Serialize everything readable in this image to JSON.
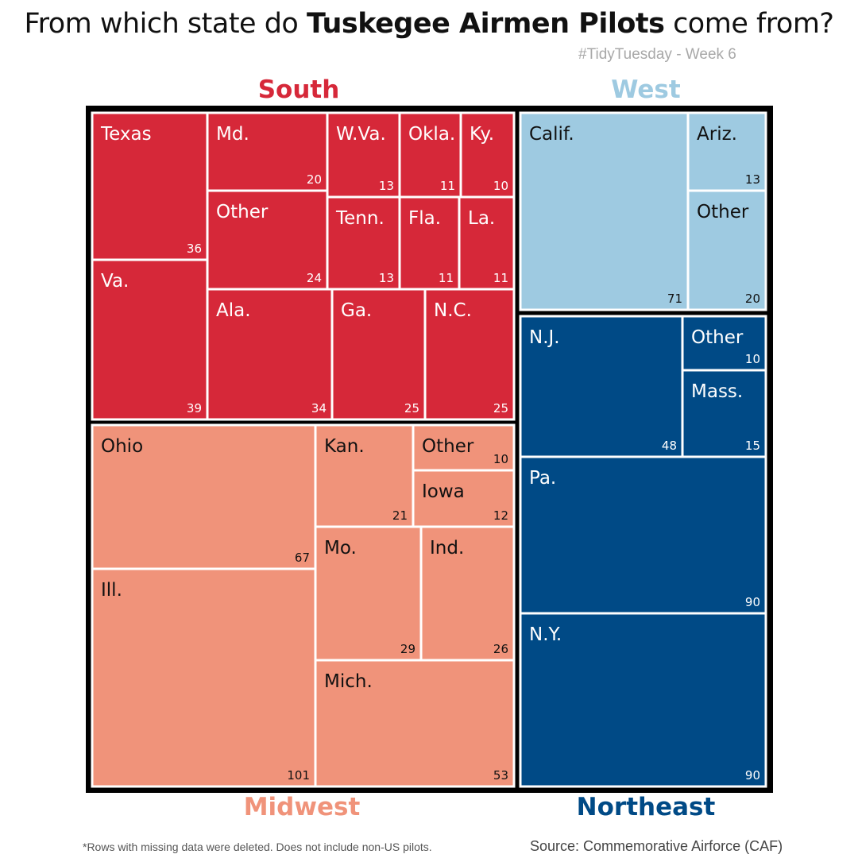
{
  "title": {
    "prefix": "From which state do ",
    "bold": "Tuskegee Airmen Pilots",
    "suffix": " come from?"
  },
  "subtitle": "#TidyTuesday - Week 6",
  "footnote": "*Rows with missing data were deleted. Does not include non-US pilots.",
  "source": "Source: Commemorative Airforce (CAF)",
  "colors": {
    "South": "#d62839",
    "West": "#9ecae1",
    "Midwest": "#f0937a",
    "Northeast": "#004a86",
    "frame": "#000000",
    "border": "#ffffff"
  },
  "regions": {
    "south": "South",
    "west": "West",
    "midwest": "Midwest",
    "northeast": "Northeast"
  },
  "chart_data": {
    "type": "treemap",
    "title": "From which state do Tuskegee Airmen Pilots come from?",
    "groups": [
      {
        "name": "South",
        "items": [
          {
            "label": "Texas",
            "value": 36
          },
          {
            "label": "Va.",
            "value": 39
          },
          {
            "label": "Md.",
            "value": 20
          },
          {
            "label": "W.Va.",
            "value": 13
          },
          {
            "label": "Okla.",
            "value": 11
          },
          {
            "label": "Ky.",
            "value": 10
          },
          {
            "label": "Other",
            "value": 24
          },
          {
            "label": "Tenn.",
            "value": 13
          },
          {
            "label": "Fla.",
            "value": 11
          },
          {
            "label": "La.",
            "value": 11
          },
          {
            "label": "Ala.",
            "value": 34
          },
          {
            "label": "Ga.",
            "value": 25
          },
          {
            "label": "N.C.",
            "value": 25
          }
        ]
      },
      {
        "name": "West",
        "items": [
          {
            "label": "Calif.",
            "value": 71
          },
          {
            "label": "Ariz.",
            "value": 13
          },
          {
            "label": "Other",
            "value": 20
          }
        ]
      },
      {
        "name": "Midwest",
        "items": [
          {
            "label": "Ohio",
            "value": 67
          },
          {
            "label": "Ill.",
            "value": 101
          },
          {
            "label": "Kan.",
            "value": 21
          },
          {
            "label": "Other",
            "value": 10
          },
          {
            "label": "Iowa",
            "value": 12
          },
          {
            "label": "Mo.",
            "value": 29
          },
          {
            "label": "Ind.",
            "value": 26
          },
          {
            "label": "Mich.",
            "value": 53
          }
        ]
      },
      {
        "name": "Northeast",
        "items": [
          {
            "label": "N.J.",
            "value": 48
          },
          {
            "label": "Other",
            "value": 10
          },
          {
            "label": "Mass.",
            "value": 15
          },
          {
            "label": "Pa.",
            "value": 90
          },
          {
            "label": "N.Y.",
            "value": 90
          }
        ]
      }
    ]
  }
}
